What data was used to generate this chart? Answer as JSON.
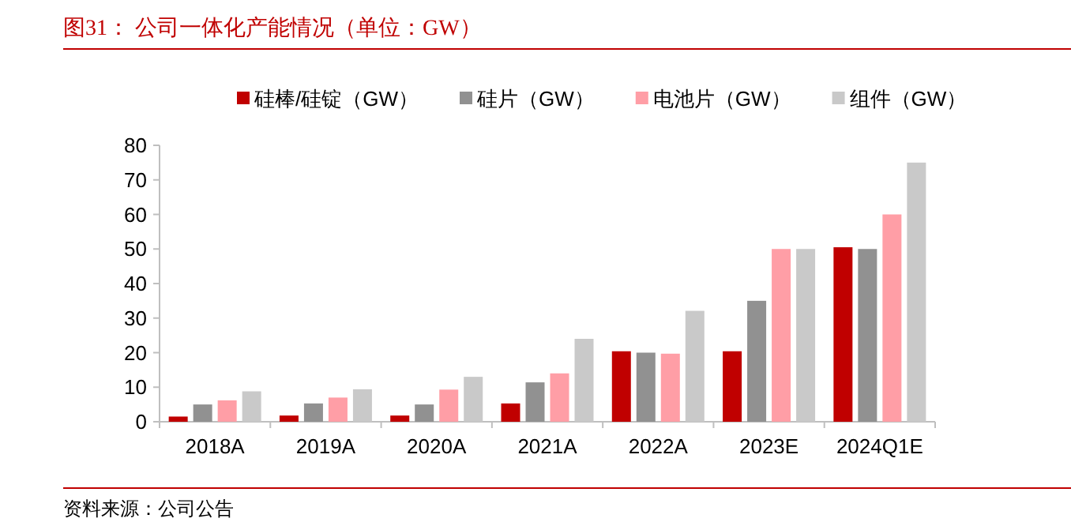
{
  "chart_data": {
    "type": "bar",
    "title": "图31：  公司一体化产能情况（单位：GW）",
    "categories": [
      "2018A",
      "2019A",
      "2020A",
      "2021A",
      "2022A",
      "2023E",
      "2024Q1E"
    ],
    "series": [
      {
        "name": "硅棒/硅锭（GW）",
        "color": "#c00000",
        "values": [
          1.5,
          1.8,
          1.8,
          5.3,
          20.4,
          20.4,
          50.5
        ]
      },
      {
        "name": "硅片（GW）",
        "color": "#919191",
        "values": [
          5,
          5.3,
          5,
          11.4,
          20,
          35,
          50
        ]
      },
      {
        "name": "电池片（GW）",
        "color": "#ff9ea6",
        "values": [
          6.2,
          7,
          9.3,
          14,
          19.7,
          50,
          60
        ]
      },
      {
        "name": "组件（GW）",
        "color": "#c9c9c9",
        "values": [
          8.8,
          9.4,
          13,
          24,
          32.1,
          50,
          75
        ]
      }
    ],
    "ylim": [
      0,
      80
    ],
    "yticks": [
      0,
      10,
      20,
      30,
      40,
      50,
      60,
      70,
      80
    ],
    "grid": false,
    "legend": "top",
    "annotations": [
      "资料来源：公司公告"
    ]
  }
}
